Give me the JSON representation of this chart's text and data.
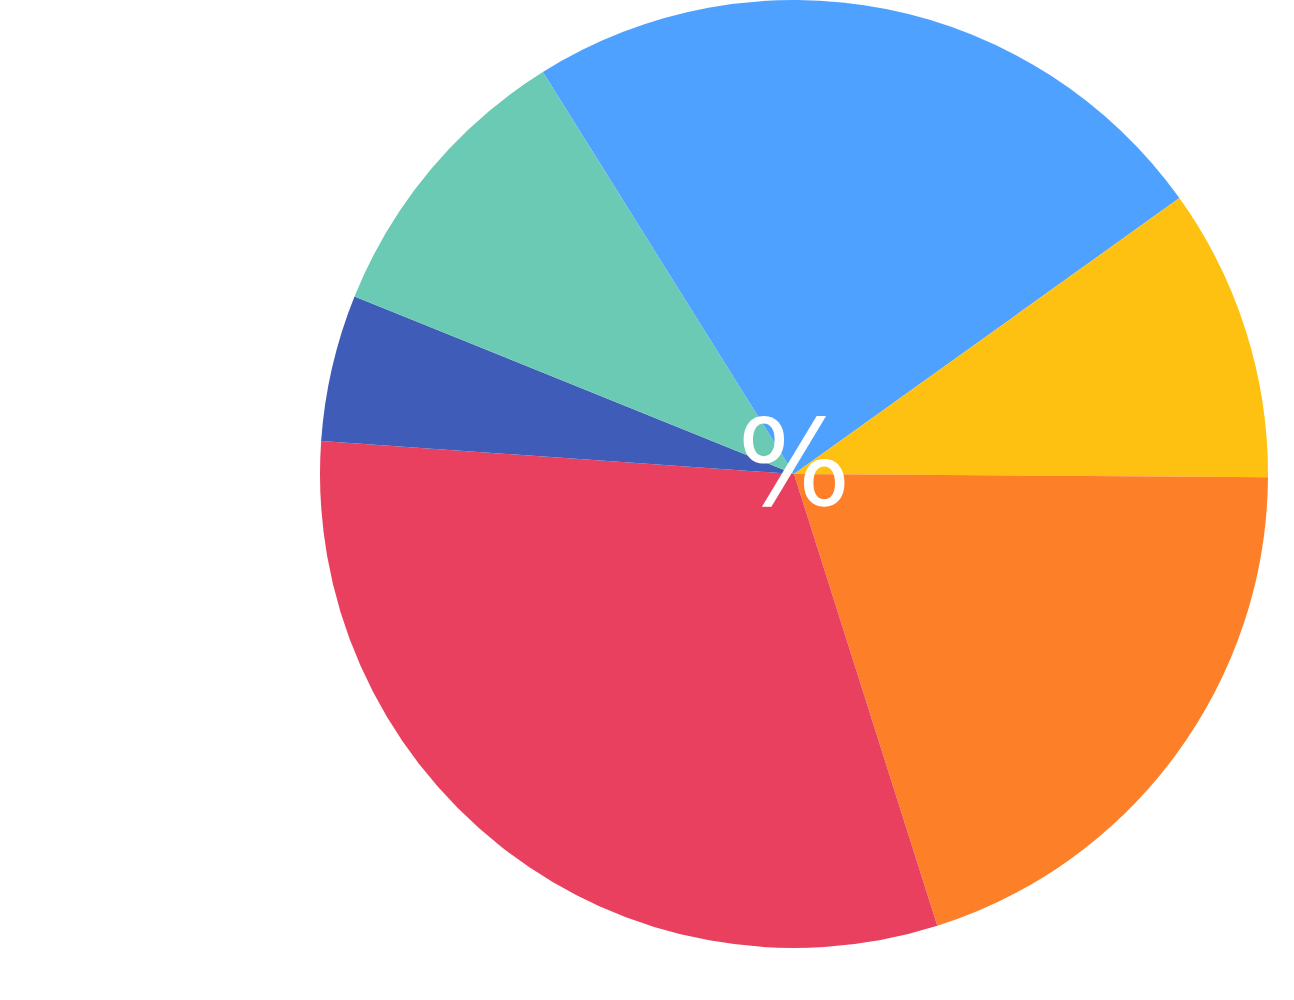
{
  "chart_data": {
    "type": "pie",
    "categories": [
      null,
      null,
      null,
      null,
      null,
      null
    ],
    "values": [
      24,
      10,
      20,
      31,
      5,
      10
    ],
    "colors": [
      "#4fa1ff",
      "#fec111",
      "#fd7f28",
      "#e8405e",
      "#3f5cb8",
      "#6bcab3"
    ],
    "annotations": [
      "%"
    ],
    "legend": false
  }
}
